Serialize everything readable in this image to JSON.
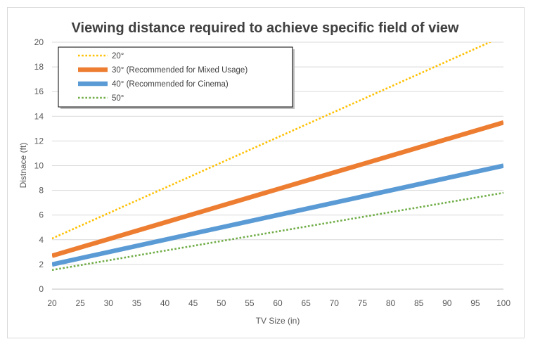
{
  "chart_data": {
    "type": "line",
    "title": "Viewing distance required to achieve specific field of view",
    "xlabel": "TV Size (in)",
    "ylabel": "Distnace (ft)",
    "xlim": [
      20,
      100
    ],
    "ylim": [
      0,
      20
    ],
    "x_ticks": [
      "20",
      "25",
      "30",
      "35",
      "40",
      "45",
      "50",
      "55",
      "60",
      "65",
      "70",
      "75",
      "80",
      "85",
      "90",
      "95",
      "100"
    ],
    "y_ticks": [
      "0",
      "2",
      "4",
      "6",
      "8",
      "10",
      "12",
      "14",
      "16",
      "18",
      "20"
    ],
    "grid": "horizontal",
    "legend_position": "top-left",
    "x": [
      20,
      100
    ],
    "series": [
      {
        "name": "20°",
        "color": "#ffc000",
        "style": "dotted",
        "values": [
          4.1,
          20.5
        ]
      },
      {
        "name": "30° (Recommended for Mixed Usage)",
        "color": "#ed7d31",
        "style": "solid-thick",
        "values": [
          2.7,
          13.5
        ]
      },
      {
        "name": "40° (Recommended for Cinema)",
        "color": "#5b9bd5",
        "style": "solid-thick",
        "values": [
          2.0,
          10.0
        ]
      },
      {
        "name": "50°",
        "color": "#70ad47",
        "style": "dotted",
        "values": [
          1.55,
          7.8
        ]
      }
    ]
  }
}
